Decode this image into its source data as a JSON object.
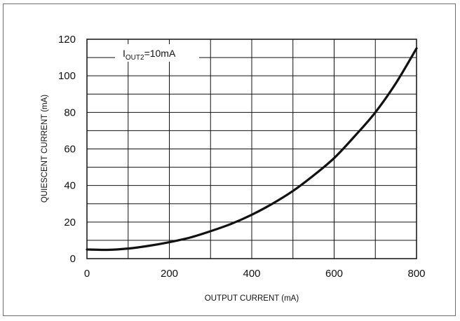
{
  "chart_data": {
    "type": "line",
    "xlabel": "OUTPUT CURRENT (mA)",
    "ylabel": "QUIESCENT CURRENT (mA)",
    "xlim": [
      0,
      800
    ],
    "ylim": [
      0,
      120
    ],
    "x_ticks": [
      0,
      200,
      400,
      600,
      800
    ],
    "y_ticks": [
      0,
      20,
      40,
      60,
      80,
      100,
      120
    ],
    "x_grid_step": 100,
    "y_grid_step": 10,
    "grid": true,
    "annotation": {
      "main": "I",
      "sub": "OUT2",
      "rest": "=10mA"
    },
    "series": [
      {
        "x": [
          0,
          50,
          100,
          150,
          200,
          250,
          300,
          350,
          400,
          450,
          500,
          550,
          600,
          650,
          700,
          750,
          800
        ],
        "y": [
          5,
          4.8,
          5.5,
          7,
          9,
          11.5,
          15,
          19,
          24,
          30,
          37,
          45.5,
          55,
          67,
          80,
          96,
          115
        ]
      }
    ]
  }
}
